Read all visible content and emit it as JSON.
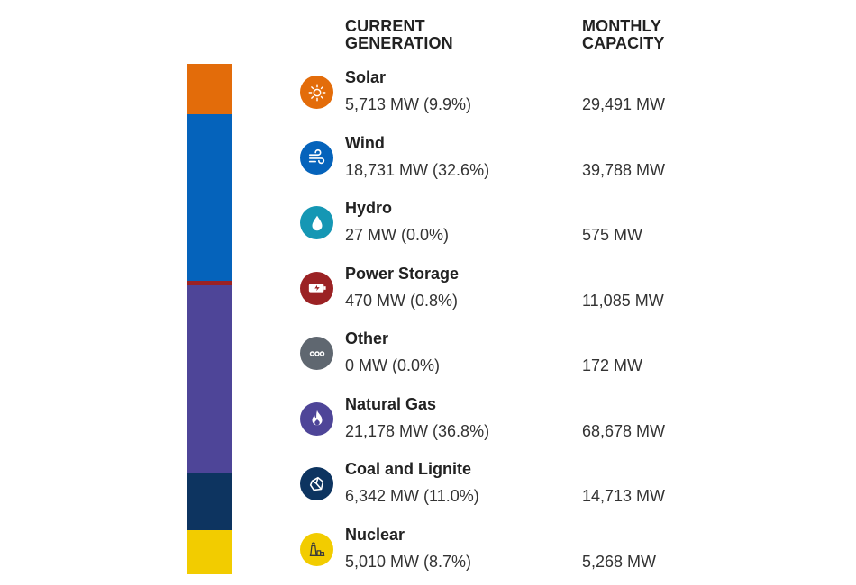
{
  "header": {
    "current_generation": "CURRENT\nGENERATION",
    "monthly_capacity": "MONTHLY\nCAPACITY"
  },
  "chart_data": {
    "type": "bar",
    "stacked": true,
    "orientation": "vertical",
    "categories": [
      "Solar",
      "Wind",
      "Hydro",
      "Power Storage",
      "Other",
      "Natural Gas",
      "Coal and Lignite",
      "Nuclear"
    ],
    "values": [
      5713,
      18731,
      27,
      470,
      0,
      21178,
      6342,
      5010
    ],
    "unit": "MW"
  },
  "sources": [
    {
      "name": "Solar",
      "generation": "5,713 MW (9.9%)",
      "capacity": "29,491 MW",
      "icon": "sun-icon",
      "color": "#E36C0A"
    },
    {
      "name": "Wind",
      "generation": "18,731 MW (32.6%)",
      "capacity": "39,788 MW",
      "icon": "wind-icon",
      "color": "#0563BB"
    },
    {
      "name": "Hydro",
      "generation": "27 MW (0.0%)",
      "capacity": "575 MW",
      "icon": "water-drop-icon",
      "color": "#1597B4"
    },
    {
      "name": "Power Storage",
      "generation": "470 MW (0.8%)",
      "capacity": "11,085 MW",
      "icon": "battery-icon",
      "color": "#9B2224"
    },
    {
      "name": "Other",
      "generation": "0 MW (0.0%)",
      "capacity": "172 MW",
      "icon": "more-dots-icon",
      "color": "#5F6770"
    },
    {
      "name": "Natural Gas",
      "generation": "21,178 MW (36.8%)",
      "capacity": "68,678 MW",
      "icon": "flame-icon",
      "color": "#4E4598"
    },
    {
      "name": "Coal and Lignite",
      "generation": "6,342 MW (11.0%)",
      "capacity": "14,713 MW",
      "icon": "coal-icon",
      "color": "#0D3460"
    },
    {
      "name": "Nuclear",
      "generation": "5,010 MW (8.7%)",
      "capacity": "5,268 MW",
      "icon": "nuclear-plant-icon",
      "color": "#F2CC00"
    }
  ]
}
